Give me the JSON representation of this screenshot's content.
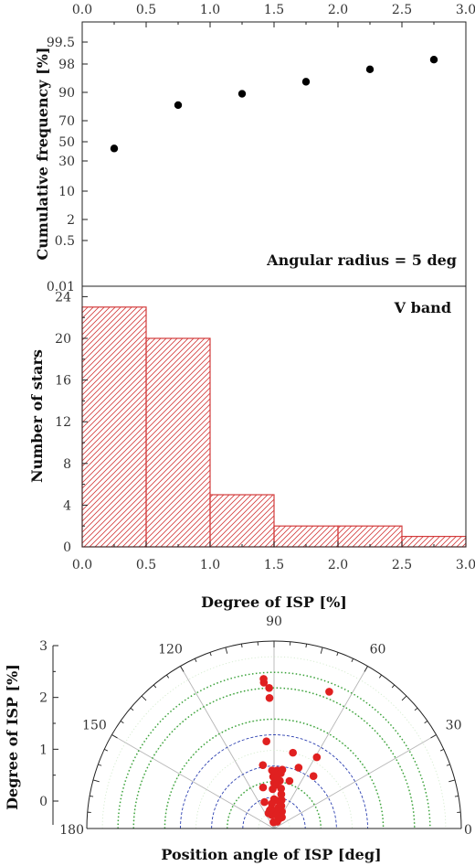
{
  "chart_data": [
    {
      "type": "scatter",
      "panel": "top",
      "ylabel": "Cumulative frequency [%]",
      "xlim": [
        0.0,
        3.0
      ],
      "x_ticks": [
        "0.0",
        "0.5",
        "1.0",
        "1.5",
        "2.0",
        "2.5",
        "3.0"
      ],
      "y_scale": "probability",
      "y_ticks": [
        "0.01",
        "0.5",
        "2",
        "10",
        "30",
        "50",
        "70",
        "90",
        "98",
        "99.5"
      ],
      "annotation": "Angular radius = 5 deg",
      "points": [
        {
          "x": 0.25,
          "y": 43
        },
        {
          "x": 0.75,
          "y": 81
        },
        {
          "x": 1.25,
          "y": 89
        },
        {
          "x": 1.75,
          "y": 93
        },
        {
          "x": 2.25,
          "y": 96.5
        },
        {
          "x": 2.75,
          "y": 98.3
        }
      ]
    },
    {
      "type": "bar",
      "panel": "middle",
      "xlabel": "Degree of ISP [%]",
      "ylabel": "Number of stars",
      "annotation": "V band",
      "xlim": [
        0.0,
        3.0
      ],
      "ylim": [
        0,
        25
      ],
      "x_ticks": [
        "0.0",
        "0.5",
        "1.0",
        "1.5",
        "2.0",
        "2.5",
        "3.0"
      ],
      "y_ticks": [
        "0",
        "4",
        "8",
        "12",
        "16",
        "20",
        "24"
      ],
      "bin_edges": [
        0.0,
        0.5,
        1.0,
        1.5,
        2.0,
        2.5,
        3.0
      ],
      "values": [
        23,
        20,
        5,
        2,
        2,
        1
      ],
      "bar_color": "#d33c3c"
    },
    {
      "type": "scatter",
      "panel": "polar",
      "coordinates": "polar",
      "xlabel": "Position angle of ISP [deg]",
      "ylabel": "Degree of ISP [%]",
      "angle_range": [
        0,
        180
      ],
      "r_range": [
        0,
        3
      ],
      "angle_ticks": [
        "0",
        "30",
        "60",
        "90",
        "120",
        "150",
        "180"
      ],
      "r_ticks": [
        "0",
        "1",
        "2",
        "3"
      ],
      "point_color": "#e02020",
      "points": [
        {
          "angle": 94,
          "r": 2.4
        },
        {
          "angle": 94,
          "r": 2.34
        },
        {
          "angle": 92,
          "r": 2.25
        },
        {
          "angle": 92,
          "r": 2.09
        },
        {
          "angle": 68,
          "r": 2.36
        },
        {
          "angle": 59,
          "r": 1.33
        },
        {
          "angle": 53,
          "r": 1.05
        },
        {
          "angle": 68,
          "r": 1.05
        },
        {
          "angle": 76,
          "r": 1.25
        },
        {
          "angle": 82,
          "r": 0.95
        },
        {
          "angle": 72,
          "r": 0.8
        },
        {
          "angle": 95,
          "r": 1.4
        },
        {
          "angle": 100,
          "r": 1.03
        },
        {
          "angle": 105,
          "r": 0.68
        },
        {
          "angle": 110,
          "r": 0.45
        },
        {
          "angle": 92,
          "r": 0.93
        },
        {
          "angle": 91,
          "r": 0.83
        },
        {
          "angle": 90,
          "r": 0.73
        },
        {
          "angle": 92,
          "r": 0.63
        },
        {
          "angle": 87,
          "r": 0.93
        },
        {
          "angle": 87,
          "r": 0.82
        },
        {
          "angle": 87,
          "r": 0.7
        },
        {
          "angle": 83,
          "r": 0.89
        },
        {
          "angle": 83,
          "r": 0.77
        },
        {
          "angle": 80,
          "r": 0.65
        },
        {
          "angle": 78,
          "r": 0.56
        },
        {
          "angle": 75,
          "r": 0.47
        },
        {
          "angle": 72,
          "r": 0.38
        },
        {
          "angle": 65,
          "r": 0.3
        },
        {
          "angle": 78,
          "r": 0.34
        },
        {
          "angle": 85,
          "r": 0.45
        },
        {
          "angle": 90,
          "r": 0.47
        },
        {
          "angle": 95,
          "r": 0.4
        },
        {
          "angle": 98,
          "r": 0.32
        },
        {
          "angle": 103,
          "r": 0.3
        },
        {
          "angle": 110,
          "r": 0.26
        },
        {
          "angle": 100,
          "r": 0.22
        },
        {
          "angle": 90,
          "r": 0.25
        },
        {
          "angle": 85,
          "r": 0.28
        },
        {
          "angle": 80,
          "r": 0.22
        },
        {
          "angle": 60,
          "r": 0.19
        },
        {
          "angle": 55,
          "r": 0.22
        },
        {
          "angle": 65,
          "r": 0.12
        },
        {
          "angle": 95,
          "r": 0.1
        }
      ]
    }
  ]
}
